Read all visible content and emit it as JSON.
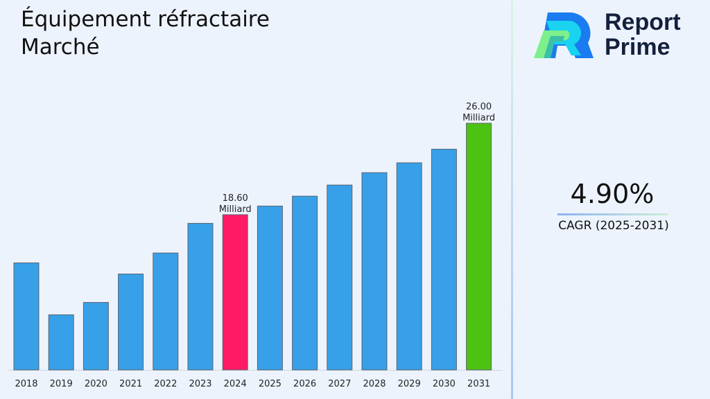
{
  "title": "Équipement réfractaire Marché",
  "logo": {
    "line1": "Report",
    "line2": "Prime"
  },
  "cagr": {
    "value": "4.90%",
    "label": "CAGR (2025-2031)"
  },
  "colors": {
    "bar": "#37a0e8",
    "highlight_2024": "#ff1a66",
    "highlight_2031": "#4cc213",
    "background": "#edf3fd"
  },
  "chart_data": {
    "type": "bar",
    "title": "Équipement réfractaire Marché",
    "categories": [
      "2018",
      "2019",
      "2020",
      "2021",
      "2022",
      "2023",
      "2024",
      "2025",
      "2026",
      "2027",
      "2028",
      "2029",
      "2030",
      "2031"
    ],
    "values": [
      14.7,
      10.5,
      11.5,
      13.8,
      15.5,
      17.9,
      18.6,
      19.3,
      20.1,
      21.0,
      22.0,
      22.8,
      23.9,
      26.0
    ],
    "data_labels": [
      {
        "category": "2024",
        "value": "18.60",
        "unit": "Milliard"
      },
      {
        "category": "2031",
        "value": "26.00",
        "unit": "Milliard"
      }
    ],
    "xlabel": "",
    "ylabel": "",
    "grid": false,
    "legend": "none"
  }
}
